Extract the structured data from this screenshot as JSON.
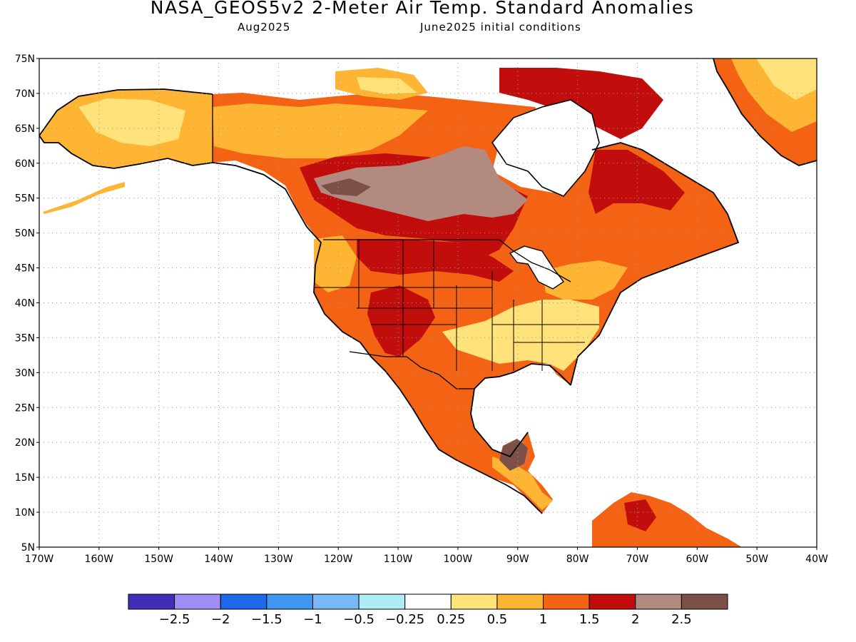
{
  "header": {
    "title": "NASA_GEOS5v2 2-Meter Air Temp. Standard Anomalies",
    "valid_month": "Aug2025",
    "init_conditions": "June2025 initial conditions"
  },
  "map": {
    "lon_range": [
      -170,
      -40
    ],
    "lat_range": [
      5,
      75
    ],
    "lat_ticks": [
      {
        "value": 75,
        "label": "75N"
      },
      {
        "value": 70,
        "label": "70N"
      },
      {
        "value": 65,
        "label": "65N"
      },
      {
        "value": 60,
        "label": "60N"
      },
      {
        "value": 55,
        "label": "55N"
      },
      {
        "value": 50,
        "label": "50N"
      },
      {
        "value": 45,
        "label": "45N"
      },
      {
        "value": 40,
        "label": "40N"
      },
      {
        "value": 35,
        "label": "35N"
      },
      {
        "value": 30,
        "label": "30N"
      },
      {
        "value": 25,
        "label": "25N"
      },
      {
        "value": 20,
        "label": "20N"
      },
      {
        "value": 15,
        "label": "15N"
      },
      {
        "value": 10,
        "label": "10N"
      },
      {
        "value": 5,
        "label": "5N"
      }
    ],
    "lon_ticks": [
      {
        "value": -170,
        "label": "170W"
      },
      {
        "value": -160,
        "label": "160W"
      },
      {
        "value": -150,
        "label": "150W"
      },
      {
        "value": -140,
        "label": "140W"
      },
      {
        "value": -130,
        "label": "130W"
      },
      {
        "value": -120,
        "label": "120W"
      },
      {
        "value": -110,
        "label": "110W"
      },
      {
        "value": -100,
        "label": "100W"
      },
      {
        "value": -90,
        "label": "90W"
      },
      {
        "value": -80,
        "label": "80W"
      },
      {
        "value": -70,
        "label": "70W"
      },
      {
        "value": -60,
        "label": "60W"
      },
      {
        "value": -50,
        "label": "50W"
      },
      {
        "value": -40,
        "label": "40W"
      }
    ],
    "grid": "dotted",
    "outline_color": "#000000"
  },
  "colorbar": {
    "colors": [
      "#3f2fb8",
      "#9f8ff5",
      "#1e69e8",
      "#3f97f2",
      "#78b8f5",
      "#afedf6",
      "#ffffff",
      "#ffe27a",
      "#fdb533",
      "#f46314",
      "#c20d0d",
      "#b28a80",
      "#7c4f47"
    ],
    "labels": [
      "−2.5",
      "−2",
      "−1.5",
      "−1",
      "−0.5",
      "−0.25",
      "0.25",
      "0.5",
      "1",
      "1.5",
      "2",
      "2.5"
    ]
  }
}
